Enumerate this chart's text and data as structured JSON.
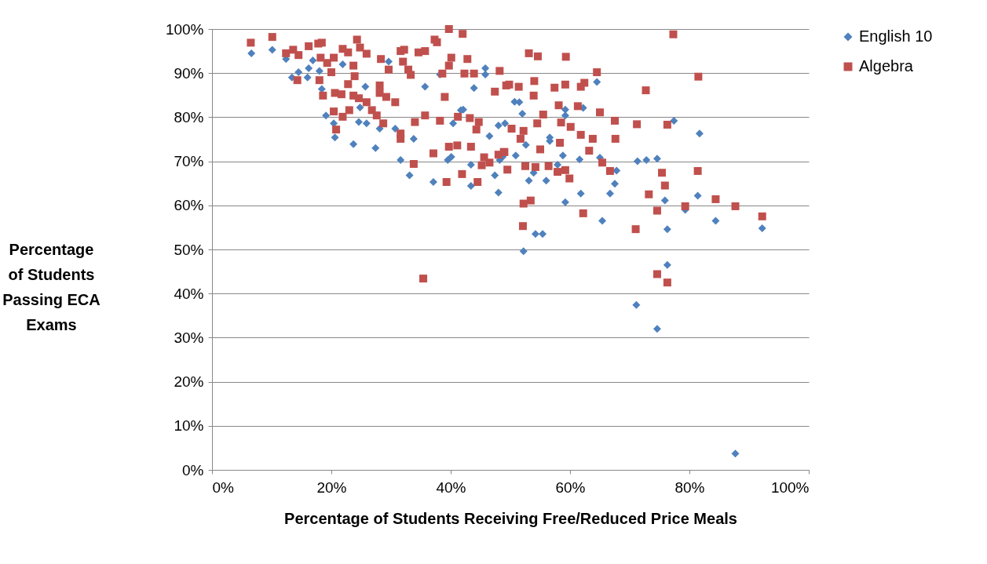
{
  "chart_data": {
    "type": "scatter",
    "xlabel": "Percentage of Students Receiving Free/Reduced Price Meals",
    "ylabel": "Percentage of Students Passing ECA Exams",
    "xlim": [
      0,
      100
    ],
    "ylim": [
      0,
      100
    ],
    "xticks": [
      {
        "value": 0,
        "label": "0%"
      },
      {
        "value": 20,
        "label": "20%"
      },
      {
        "value": 40,
        "label": "40%"
      },
      {
        "value": 60,
        "label": "60%"
      },
      {
        "value": 80,
        "label": "80%"
      },
      {
        "value": 100,
        "label": "100%"
      }
    ],
    "yticks": [
      {
        "value": 0,
        "label": "0%"
      },
      {
        "value": 10,
        "label": "10%"
      },
      {
        "value": 20,
        "label": "20%"
      },
      {
        "value": 30,
        "label": "30%"
      },
      {
        "value": 40,
        "label": "40%"
      },
      {
        "value": 50,
        "label": "50%"
      },
      {
        "value": 60,
        "label": "60%"
      },
      {
        "value": 70,
        "label": "70%"
      },
      {
        "value": 80,
        "label": "80%"
      },
      {
        "value": 90,
        "label": "90%"
      },
      {
        "value": 100,
        "label": "100%"
      }
    ],
    "grid": "y",
    "legend": "right",
    "series": [
      {
        "name": "English 10",
        "color": "#4f81bd",
        "marker": "diamond",
        "x": [
          6.6,
          10.1,
          12.4,
          13.4,
          14.5,
          16,
          16.2,
          16.9,
          18,
          18.4,
          19.1,
          20.4,
          20.6,
          21.9,
          23.7,
          24.6,
          25.9,
          24.8,
          25.7,
          27.4,
          28.1,
          29.6,
          30.7,
          31.6,
          33.1,
          33.8,
          35.7,
          37.1,
          39.5,
          40.4,
          41.7,
          43.4,
          43.9,
          45.8,
          46.5,
          47.4,
          48,
          49.1,
          48.2,
          64.5,
          62.2,
          51.5,
          59.2,
          56.6,
          58.8,
          61.6,
          50.9,
          53.1,
          56,
          61.8,
          66.7,
          67.5,
          67.8,
          65,
          71.3,
          72.8,
          74.6,
          77.4,
          81.7,
          81.4,
          75.9,
          75.4,
          73.2,
          59.2,
          65.4,
          54.2,
          55.4,
          52.2,
          71.1,
          74.6,
          76.3,
          76.3,
          79.3,
          84.4,
          92.2,
          87.7,
          42.1,
          44.1,
          45.8,
          48.7,
          50.7,
          52.6,
          53.9,
          56.6,
          38.2,
          40.1,
          43.4,
          48,
          52,
          57.9,
          59.2
        ],
        "values": [
          94.5,
          95.3,
          93.2,
          89,
          90.2,
          89,
          91.1,
          92.9,
          90.5,
          86.4,
          80.4,
          78.6,
          75.4,
          92,
          73.9,
          78.9,
          78.6,
          82.2,
          86.9,
          73,
          77.4,
          92.6,
          77.4,
          70.3,
          66.8,
          75.1,
          86.9,
          65.3,
          70.3,
          78.6,
          81.6,
          64.4,
          86.6,
          91.1,
          75.7,
          66.8,
          62.9,
          78.6,
          70.3,
          88,
          82.1,
          83.4,
          80.4,
          75.4,
          71.3,
          70.4,
          71.3,
          65.6,
          65.6,
          62.7,
          62.7,
          64.9,
          67.9,
          70.8,
          70,
          70.3,
          70.6,
          79.2,
          76.3,
          62.2,
          61.1,
          null,
          null,
          60.7,
          56.5,
          53.5,
          53.5,
          49.6,
          37.4,
          32,
          54.6,
          46.5,
          59,
          56.5,
          54.8,
          3.7,
          81.7,
          null,
          89.7,
          71,
          83.5,
          73.7,
          67.4,
          74.6,
          89.7,
          71,
          69.2,
          78.1,
          80.8,
          69.2,
          81.7
        ]
      },
      {
        "name": "Algebra",
        "color": "#c0504d",
        "marker": "square",
        "x": [
          6.5,
          10.1,
          12.4,
          13.6,
          14.5,
          16.2,
          17.8,
          18.4,
          18.2,
          14.3,
          18,
          18.6,
          19.3,
          20.4,
          20,
          21.9,
          22.8,
          24.3,
          24.8,
          25.9,
          23.7,
          23.9,
          22.8,
          20.4,
          21.9,
          20.8,
          20.6,
          21.7,
          23.7,
          24.6,
          25.9,
          23,
          26.8,
          27.6,
          28.7,
          28.1,
          28.3,
          29.6,
          31.6,
          32.2,
          32,
          32.9,
          33.3,
          34.6,
          35.7,
          28.1,
          29.2,
          30.7,
          31.6,
          31.6,
          33.8,
          34,
          35.7,
          37.3,
          37.7,
          39.7,
          42,
          37.1,
          39.3,
          38.2,
          39,
          38.6,
          40.1,
          42.8,
          39.7,
          42.3,
          43.9,
          41.2,
          43.2,
          44.7,
          39.7,
          41.1,
          43.4,
          44.3,
          45.6,
          46.5,
          45.2,
          44.5,
          41.9,
          48,
          48.9,
          47.4,
          48.2,
          49.3,
          53.1,
          54.6,
          59.3,
          64.5,
          77.3,
          81.5,
          72.7,
          49.8,
          51.4,
          54,
          57.4,
          59.2,
          61.8,
          62.4,
          53.9,
          58.1,
          61.3,
          65,
          67.5,
          71.2,
          76.3,
          55.5,
          54.5,
          50.2,
          52.2,
          58.5,
          60.1,
          61.8,
          63.8,
          67.6,
          58.3,
          63.2,
          55,
          51.7,
          49,
          65.4,
          66.7,
          59.2,
          57.9,
          59.9,
          52.5,
          54.2,
          56.4,
          49.5,
          75.4,
          81.4,
          75.9,
          73.2,
          52.2,
          53.4,
          52.1,
          35.4,
          62.2,
          71,
          74.6,
          74.6,
          76.3,
          79.3,
          84.4,
          87.7,
          92.2
        ],
        "values": [
          96.9,
          98.2,
          94.5,
          95.3,
          94.1,
          96.1,
          96.7,
          96.9,
          93.5,
          88.4,
          88.4,
          84.9,
          92.3,
          93.5,
          90.2,
          95.5,
          94.7,
          97.6,
          95.8,
          94.4,
          91.7,
          89.3,
          87.5,
          81.3,
          80.1,
          77.2,
          85.5,
          85.2,
          84.9,
          84.3,
          83.4,
          81.6,
          81.6,
          80.4,
          78.6,
          87.2,
          93.2,
          90.8,
          95,
          95.3,
          92.6,
          90.8,
          89.6,
          94.7,
          95,
          85.5,
          84.6,
          83.4,
          76.3,
          75.1,
          69.4,
          78.9,
          80.4,
          97.6,
          97,
          100,
          98.9,
          71.8,
          65.3,
          79.2,
          84.6,
          89.9,
          93.5,
          93.2,
          91.7,
          89.9,
          89.9,
          80.1,
          79.8,
          78.9,
          73.3,
          73.6,
          73.3,
          77.2,
          70.9,
          69.7,
          69.1,
          65.3,
          67.1,
          71.5,
          72.1,
          85.8,
          90.5,
          87.2,
          94.5,
          93.8,
          93.7,
          90.2,
          98.8,
          89.2,
          86.1,
          87.4,
          86.9,
          88.2,
          86.7,
          87.4,
          86.9,
          87.8,
          84.9,
          82.7,
          82.5,
          81.1,
          79.2,
          78.4,
          78.3,
          80.6,
          78.6,
          77.4,
          76.9,
          78.8,
          77.8,
          76,
          75.1,
          75.1,
          74.2,
          72.4,
          72.7,
          75.1,
          72.1,
          69.7,
          67.8,
          68,
          67.6,
          66.1,
          68.9,
          68.7,
          68.9,
          68.1,
          67.4,
          67.8,
          64.5,
          62.5,
          60.4,
          61.1,
          55.3,
          43.4,
          58.2,
          54.6,
          58.8,
          44.4,
          42.5,
          59.8,
          61.4,
          59.8,
          57.5
        ]
      }
    ]
  }
}
